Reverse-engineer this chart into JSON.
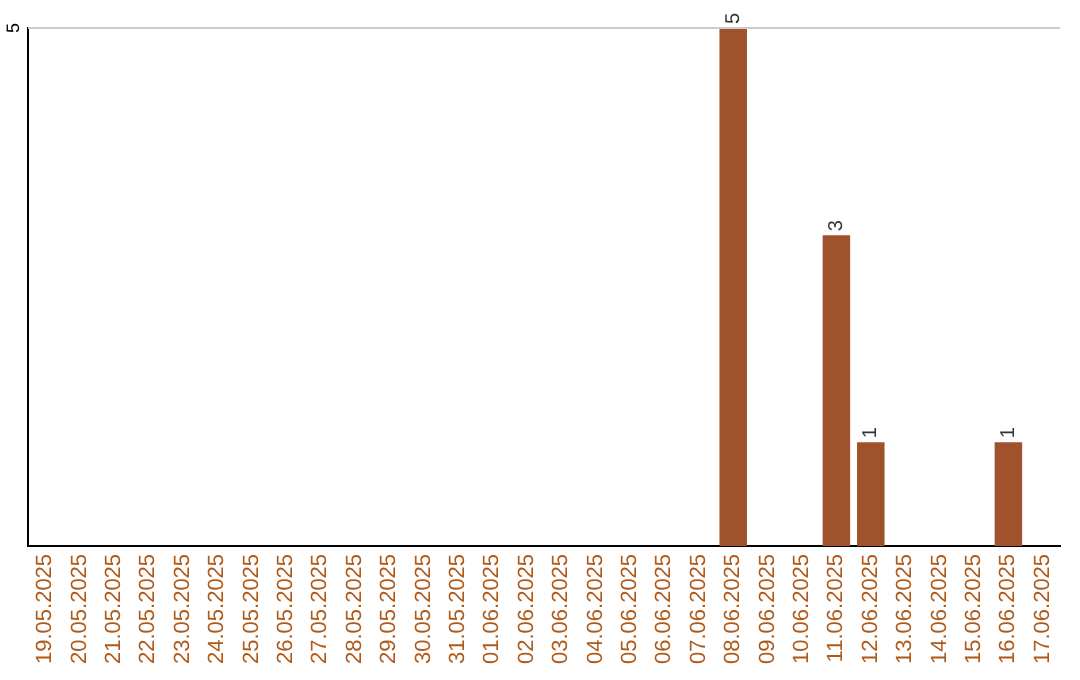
{
  "chart_data": {
    "type": "bar",
    "categories": [
      "19.05.2025",
      "20.05.2025",
      "21.05.2025",
      "22.05.2025",
      "23.05.2025",
      "24.05.2025",
      "25.05.2025",
      "26.05.2025",
      "27.05.2025",
      "28.05.2025",
      "29.05.2025",
      "30.05.2025",
      "31.05.2025",
      "01.06.2025",
      "02.06.2025",
      "03.06.2025",
      "04.06.2025",
      "05.06.2025",
      "06.06.2025",
      "07.06.2025",
      "08.06.2025",
      "09.06.2025",
      "10.06.2025",
      "11.06.2025",
      "12.06.2025",
      "13.06.2025",
      "14.06.2025",
      "15.06.2025",
      "16.06.2025",
      "17.06.2025"
    ],
    "values": [
      null,
      null,
      null,
      null,
      null,
      null,
      null,
      null,
      null,
      null,
      null,
      null,
      null,
      null,
      null,
      null,
      null,
      null,
      null,
      null,
      5,
      null,
      null,
      3,
      1,
      null,
      null,
      null,
      1,
      null
    ],
    "data_labels": true,
    "color": "#a0522d",
    "ylim": [
      0,
      5
    ],
    "ref_lines": [
      {
        "axis": "y",
        "value": 5,
        "label": "5",
        "color": "#cccccc"
      }
    ],
    "legend": false
  }
}
